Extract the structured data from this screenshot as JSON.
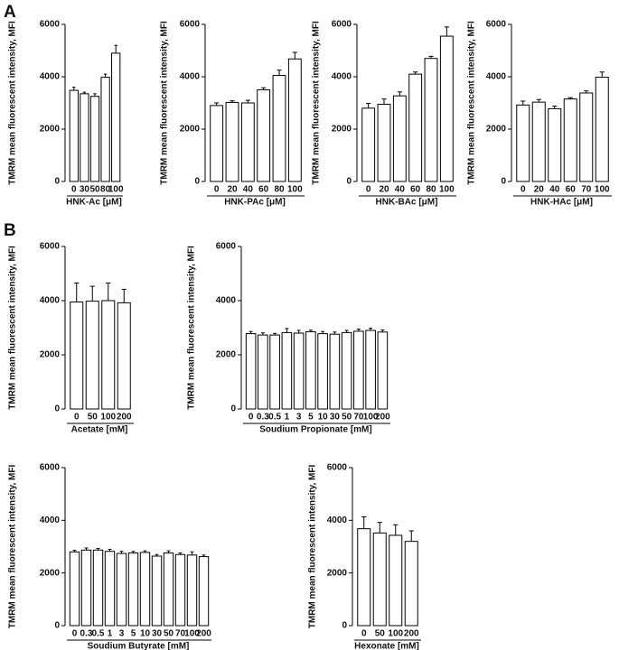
{
  "chart_data": [
    {
      "type": "bar",
      "panel_label": "A",
      "ylabel": "TMRM mean fluorescent intensity, MFI",
      "xlabel": "HNK-Ac [μM]",
      "categories": [
        "0",
        "30",
        "50",
        "80",
        "100"
      ],
      "values": [
        3480,
        3350,
        3250,
        3980,
        4900
      ],
      "errors": [
        120,
        60,
        100,
        120,
        300
      ],
      "color": "#ffffff",
      "ylim": [
        0,
        6000
      ],
      "yticks": [
        0,
        2000,
        4000,
        6000
      ]
    },
    {
      "type": "bar",
      "ylabel": "TMRM mean fluorescent intensity, MFI",
      "xlabel": "HNK-PAc [μM]",
      "categories": [
        "0",
        "20",
        "40",
        "60",
        "80",
        "100"
      ],
      "values": [
        2900,
        3020,
        3000,
        3500,
        4050,
        4680
      ],
      "errors": [
        100,
        60,
        100,
        80,
        200,
        250
      ],
      "color": "#ffffff",
      "ylim": [
        0,
        6000
      ],
      "yticks": [
        0,
        2000,
        4000,
        6000
      ]
    },
    {
      "type": "bar",
      "ylabel": "TMRM mean fluorescent intensity, MFI",
      "xlabel": "HNK-BAc [μM]",
      "categories": [
        "0",
        "20",
        "40",
        "60",
        "80",
        "100"
      ],
      "values": [
        2800,
        2950,
        3270,
        4100,
        4700,
        5550
      ],
      "errors": [
        180,
        200,
        150,
        80,
        80,
        350
      ],
      "color": "#ffffff",
      "ylim": [
        0,
        6000
      ],
      "yticks": [
        0,
        2000,
        4000,
        6000
      ]
    },
    {
      "type": "bar",
      "ylabel": "TMRM mean fluorescent intensity, MFI",
      "xlabel": "HNK-HAc [μM]",
      "categories": [
        "0",
        "20",
        "40",
        "60",
        "70",
        "100"
      ],
      "values": [
        2920,
        3030,
        2780,
        3150,
        3380,
        3980
      ],
      "errors": [
        150,
        100,
        100,
        50,
        80,
        200
      ],
      "color": "#ffffff",
      "ylim": [
        0,
        6000
      ],
      "yticks": [
        0,
        2000,
        4000,
        6000
      ]
    },
    {
      "type": "bar",
      "panel_label": "B",
      "ylabel": "TMRM mean fluorescent intensity, MFI",
      "xlabel": "Acetate [mM]",
      "categories": [
        "0",
        "50",
        "100",
        "200"
      ],
      "values": [
        3950,
        3980,
        4000,
        3920
      ],
      "errors": [
        700,
        550,
        650,
        500
      ],
      "color": "#ffffff",
      "ylim": [
        0,
        6000
      ],
      "yticks": [
        0,
        2000,
        4000,
        6000
      ]
    },
    {
      "type": "bar",
      "ylabel": "TMRM mean fluorescent intensity, MFI",
      "xlabel": "Soudium Propionate [mM]",
      "categories": [
        "0",
        "0.3",
        "0.5",
        "1",
        "3",
        "5",
        "10",
        "30",
        "50",
        "70",
        "100",
        "200"
      ],
      "values": [
        2780,
        2730,
        2730,
        2820,
        2800,
        2850,
        2780,
        2760,
        2820,
        2870,
        2900,
        2840
      ],
      "errors": [
        80,
        80,
        60,
        150,
        100,
        60,
        80,
        80,
        80,
        80,
        80,
        80
      ],
      "color": "#ffffff",
      "ylim": [
        0,
        6000
      ],
      "yticks": [
        0,
        2000,
        4000,
        6000
      ]
    },
    {
      "type": "bar",
      "ylabel": "TMRM mean fluorescent intensity, MFI",
      "xlabel": "Soudium Butyrate [mM]",
      "categories": [
        "0",
        "0.3",
        "0.5",
        "1",
        "3",
        "5",
        "10",
        "30",
        "50",
        "70",
        "100",
        "200"
      ],
      "values": [
        2800,
        2870,
        2870,
        2820,
        2740,
        2760,
        2780,
        2640,
        2760,
        2700,
        2680,
        2620
      ],
      "errors": [
        60,
        80,
        60,
        80,
        80,
        60,
        60,
        60,
        80,
        60,
        120,
        60
      ],
      "color": "#ffffff",
      "ylim": [
        0,
        6000
      ],
      "yticks": [
        0,
        2000,
        4000,
        6000
      ]
    },
    {
      "type": "bar",
      "ylabel": "TMRM mean fluorescent intensity, MFI",
      "xlabel": "Hexonate [mM]",
      "categories": [
        "0",
        "50",
        "100",
        "200"
      ],
      "values": [
        3680,
        3520,
        3430,
        3200
      ],
      "errors": [
        450,
        400,
        400,
        400
      ],
      "color": "#ffffff",
      "ylim": [
        0,
        6000
      ],
      "yticks": [
        0,
        2000,
        4000,
        6000
      ]
    }
  ]
}
